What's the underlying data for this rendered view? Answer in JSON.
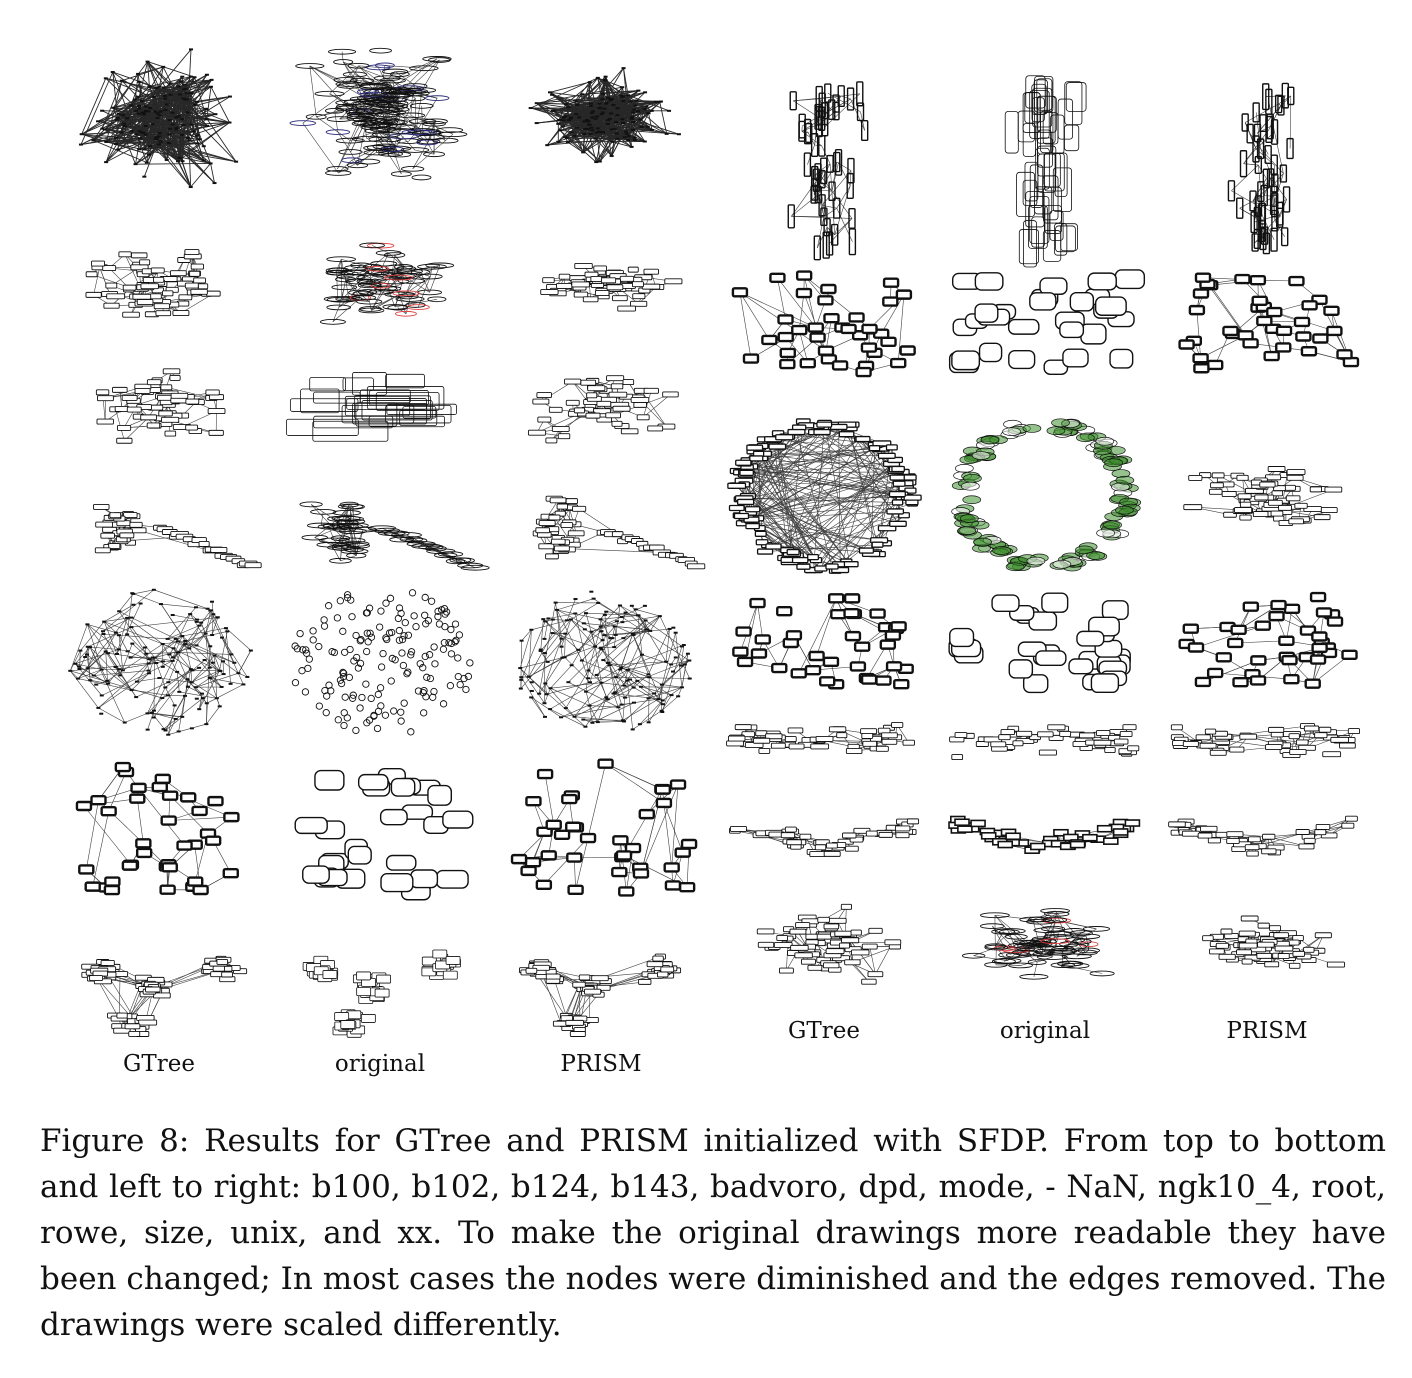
{
  "figure": {
    "left_block": {
      "column_labels": [
        "GTree",
        "original",
        "PRISM"
      ]
    },
    "right_block": {
      "column_labels": [
        "GTree",
        "original",
        "PRISM"
      ]
    },
    "caption": "Figure 8: Results for GTree and PRISM initialized with SFDP. From top to bottom and left to right: b100, b102, b124, b143, badvoro, dpd, mode, - NaN, ngk10_4, root, rowe, size, unix, and xx.  To make the original drawings more readable they have been changed; In most cases the nodes were diminished and the edges removed. The drawings were scaled differently.",
    "styles": {
      "ink": "#111111",
      "highlight_red": "#e04040",
      "highlight_green": "#3f8f2f",
      "highlight_blue": "#2a2a7a"
    },
    "drawings": [
      {
        "graph": "b100",
        "method": "GTree",
        "style": "dense"
      },
      {
        "graph": "b100",
        "method": "original",
        "style": "ellipse-dense"
      },
      {
        "graph": "b100",
        "method": "PRISM",
        "style": "dense-flat"
      },
      {
        "graph": "b102",
        "method": "GTree",
        "style": "mesh"
      },
      {
        "graph": "b102",
        "method": "original",
        "style": "ellipse-red"
      },
      {
        "graph": "b102",
        "method": "PRISM",
        "style": "mesh-flat"
      },
      {
        "graph": "b124",
        "method": "GTree",
        "style": "boxes-small"
      },
      {
        "graph": "b124",
        "method": "original",
        "style": "big-rects"
      },
      {
        "graph": "b124",
        "method": "PRISM",
        "style": "boxes-small"
      },
      {
        "graph": "b143",
        "method": "GTree",
        "style": "hub-tail"
      },
      {
        "graph": "b143",
        "method": "original",
        "style": "hub-tail-ellipse"
      },
      {
        "graph": "b143",
        "method": "PRISM",
        "style": "hub-tail"
      },
      {
        "graph": "badvoro",
        "method": "GTree",
        "style": "tree-blob"
      },
      {
        "graph": "badvoro",
        "method": "original",
        "style": "circles"
      },
      {
        "graph": "badvoro",
        "method": "PRISM",
        "style": "tree-blob"
      },
      {
        "graph": "dpd",
        "method": "GTree",
        "style": "box-graph"
      },
      {
        "graph": "dpd",
        "method": "original",
        "style": "rounded-nodes"
      },
      {
        "graph": "dpd",
        "method": "PRISM",
        "style": "box-graph"
      },
      {
        "graph": "mode",
        "method": "GTree",
        "style": "tree-branches"
      },
      {
        "graph": "mode",
        "method": "original",
        "style": "clusters"
      },
      {
        "graph": "mode",
        "method": "PRISM",
        "style": "tree-cluster"
      },
      {
        "graph": "- NaN",
        "method": "GTree",
        "style": "tall-rects"
      },
      {
        "graph": "- NaN",
        "method": "original",
        "style": "tall-rounded"
      },
      {
        "graph": "- NaN",
        "method": "PRISM",
        "style": "tall-rects"
      },
      {
        "graph": "ngk10_4",
        "method": "GTree",
        "style": "box-graph"
      },
      {
        "graph": "ngk10_4",
        "method": "original",
        "style": "rounded-nodes"
      },
      {
        "graph": "ngk10_4",
        "method": "PRISM",
        "style": "box-graph"
      },
      {
        "graph": "root",
        "method": "GTree",
        "style": "ring"
      },
      {
        "graph": "root",
        "method": "original",
        "style": "ring-green"
      },
      {
        "graph": "root",
        "method": "PRISM",
        "style": "mesh-flat"
      },
      {
        "graph": "rowe",
        "method": "GTree",
        "style": "box-graph"
      },
      {
        "graph": "rowe",
        "method": "original",
        "style": "rounded-nodes"
      },
      {
        "graph": "rowe",
        "method": "PRISM",
        "style": "box-graph"
      },
      {
        "graph": "size",
        "method": "GTree",
        "style": "band"
      },
      {
        "graph": "size",
        "method": "original",
        "style": "band-thin"
      },
      {
        "graph": "size",
        "method": "PRISM",
        "style": "band"
      },
      {
        "graph": "unix",
        "method": "GTree",
        "style": "vee-thin"
      },
      {
        "graph": "unix",
        "method": "original",
        "style": "vee-bold"
      },
      {
        "graph": "unix",
        "method": "PRISM",
        "style": "vee-thin"
      },
      {
        "graph": "xx",
        "method": "GTree",
        "style": "mesh"
      },
      {
        "graph": "xx",
        "method": "original",
        "style": "ellipse-red-2"
      },
      {
        "graph": "xx",
        "method": "PRISM",
        "style": "mesh-flat"
      }
    ]
  }
}
